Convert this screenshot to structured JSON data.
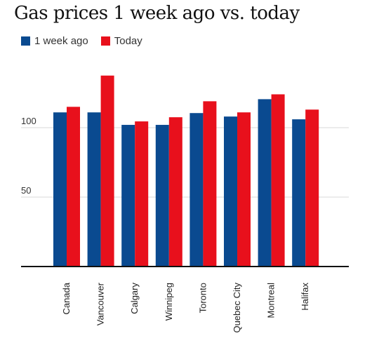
{
  "chart_data": {
    "type": "bar",
    "title": "Gas prices 1 week ago vs. today",
    "xlabel": "",
    "ylabel": "",
    "categories": [
      "Canada",
      "Vancouver",
      "Calgary",
      "Winnipeg",
      "Toronto",
      "Quebec City",
      "Montreal",
      "Halifax"
    ],
    "series": [
      {
        "name": "1 week ago",
        "color": "#0a4a90",
        "values": [
          111,
          111,
          102,
          102,
          110.5,
          108,
          120.5,
          106
        ]
      },
      {
        "name": "Today",
        "color": "#e8101c",
        "values": [
          115,
          137.5,
          104.5,
          107.5,
          119,
          111,
          124,
          113
        ]
      }
    ],
    "ylim": [
      0,
      150
    ],
    "yticks": [
      50,
      100
    ],
    "grid": true,
    "legend_position": "top-left"
  }
}
